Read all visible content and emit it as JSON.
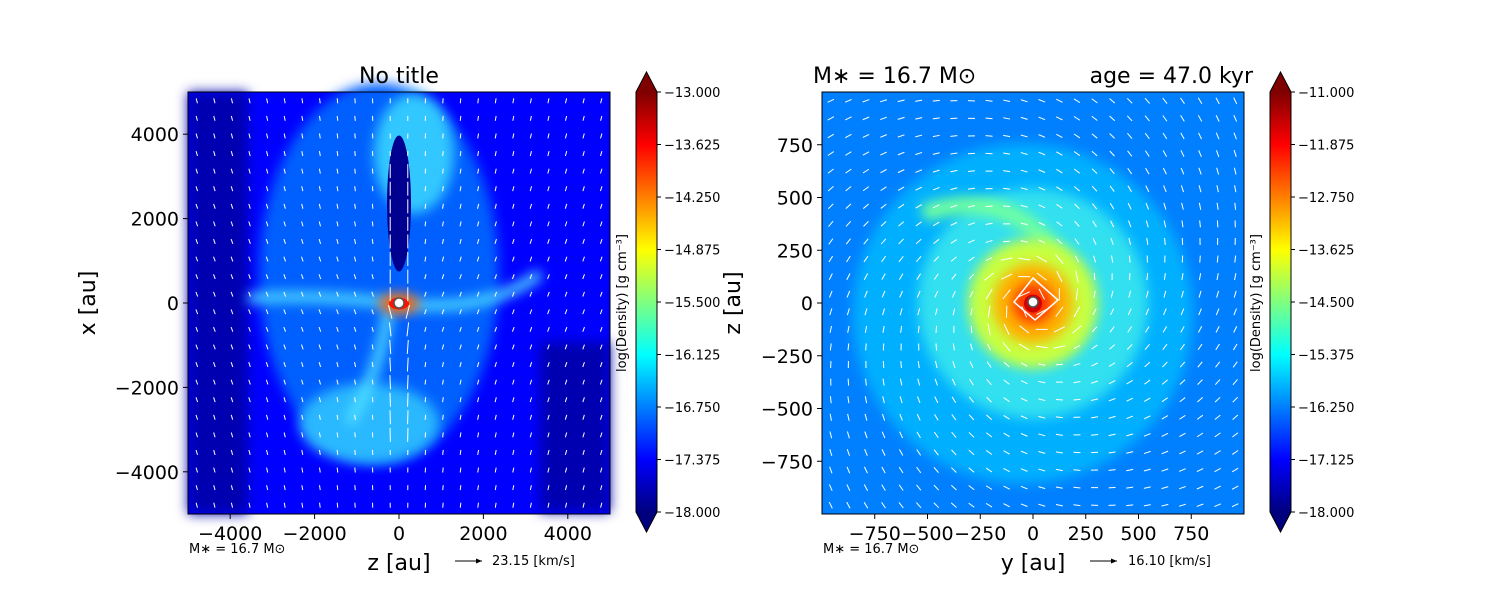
{
  "colors": {
    "colormap": [
      "#00007f",
      "#0000ff",
      "#007fff",
      "#00ffff",
      "#7fff7f",
      "#ffff00",
      "#ff7f00",
      "#ff0000",
      "#7f0000"
    ],
    "arrow": "#ffffff",
    "background": "#ffffff"
  },
  "chart_data": [
    {
      "type": "heatmap",
      "title": "No title",
      "xlabel": "z [au]",
      "ylabel": "x [au]",
      "xlim": [
        -5000,
        5000
      ],
      "ylim": [
        -5000,
        5000
      ],
      "xticks": [
        -4000,
        -2000,
        0,
        2000,
        4000
      ],
      "xtick_labels": [
        "−4000",
        "−2000",
        "0",
        "2000",
        "4000"
      ],
      "yticks": [
        4000,
        2000,
        0,
        -2000,
        -4000
      ],
      "ytick_labels": [
        "4000",
        "2000",
        "0",
        "−2000",
        "−4000"
      ],
      "colorbar": {
        "label": "log(Density) [g cm⁻³]",
        "range": [
          -18.0,
          -13.0
        ],
        "ticks": [
          -13.0,
          -13.625,
          -14.25,
          -14.875,
          -15.5,
          -16.125,
          -16.75,
          -17.375,
          -18.0
        ],
        "tick_labels": [
          "−13.000",
          "−13.625",
          "−14.250",
          "−14.875",
          "−15.500",
          "−16.125",
          "−16.750",
          "−17.375",
          "−18.000"
        ]
      },
      "annotation_mass": "M∗ = 16.7 M⊙",
      "velocity_key": "23.15 [km/s]",
      "velocity_field": "outflow"
    },
    {
      "type": "heatmap",
      "title_left": "M∗ = 16.7 M⊙",
      "title_right": "age = 47.0 kyr",
      "xlabel": "y [au]",
      "ylabel": "z [au]",
      "xlim": [
        -1000,
        1000
      ],
      "ylim": [
        -1000,
        1000
      ],
      "xticks": [
        -750,
        -500,
        -250,
        0,
        250,
        500,
        750
      ],
      "xtick_labels": [
        "−750",
        "−500",
        "−250",
        "0",
        "250",
        "500",
        "750"
      ],
      "yticks": [
        750,
        500,
        250,
        0,
        -250,
        -500,
        -750
      ],
      "ytick_labels": [
        "750",
        "500",
        "250",
        "0",
        "−250",
        "−500",
        "−750"
      ],
      "colorbar": {
        "label": "log(Density) [g cm⁻³]",
        "range": [
          -18.0,
          -11.0
        ],
        "ticks": [
          -11.0,
          -11.875,
          -12.75,
          -13.625,
          -14.5,
          -15.375,
          -16.25,
          -17.125,
          -18.0
        ],
        "tick_labels": [
          "−11.000",
          "−11.875",
          "−12.750",
          "−13.625",
          "−14.500",
          "−15.375",
          "−16.250",
          "−17.125",
          "−18.000"
        ]
      },
      "annotation_mass": "M∗ = 16.7 M⊙",
      "velocity_key": "16.10 [km/s]",
      "velocity_field": "rotation"
    }
  ]
}
